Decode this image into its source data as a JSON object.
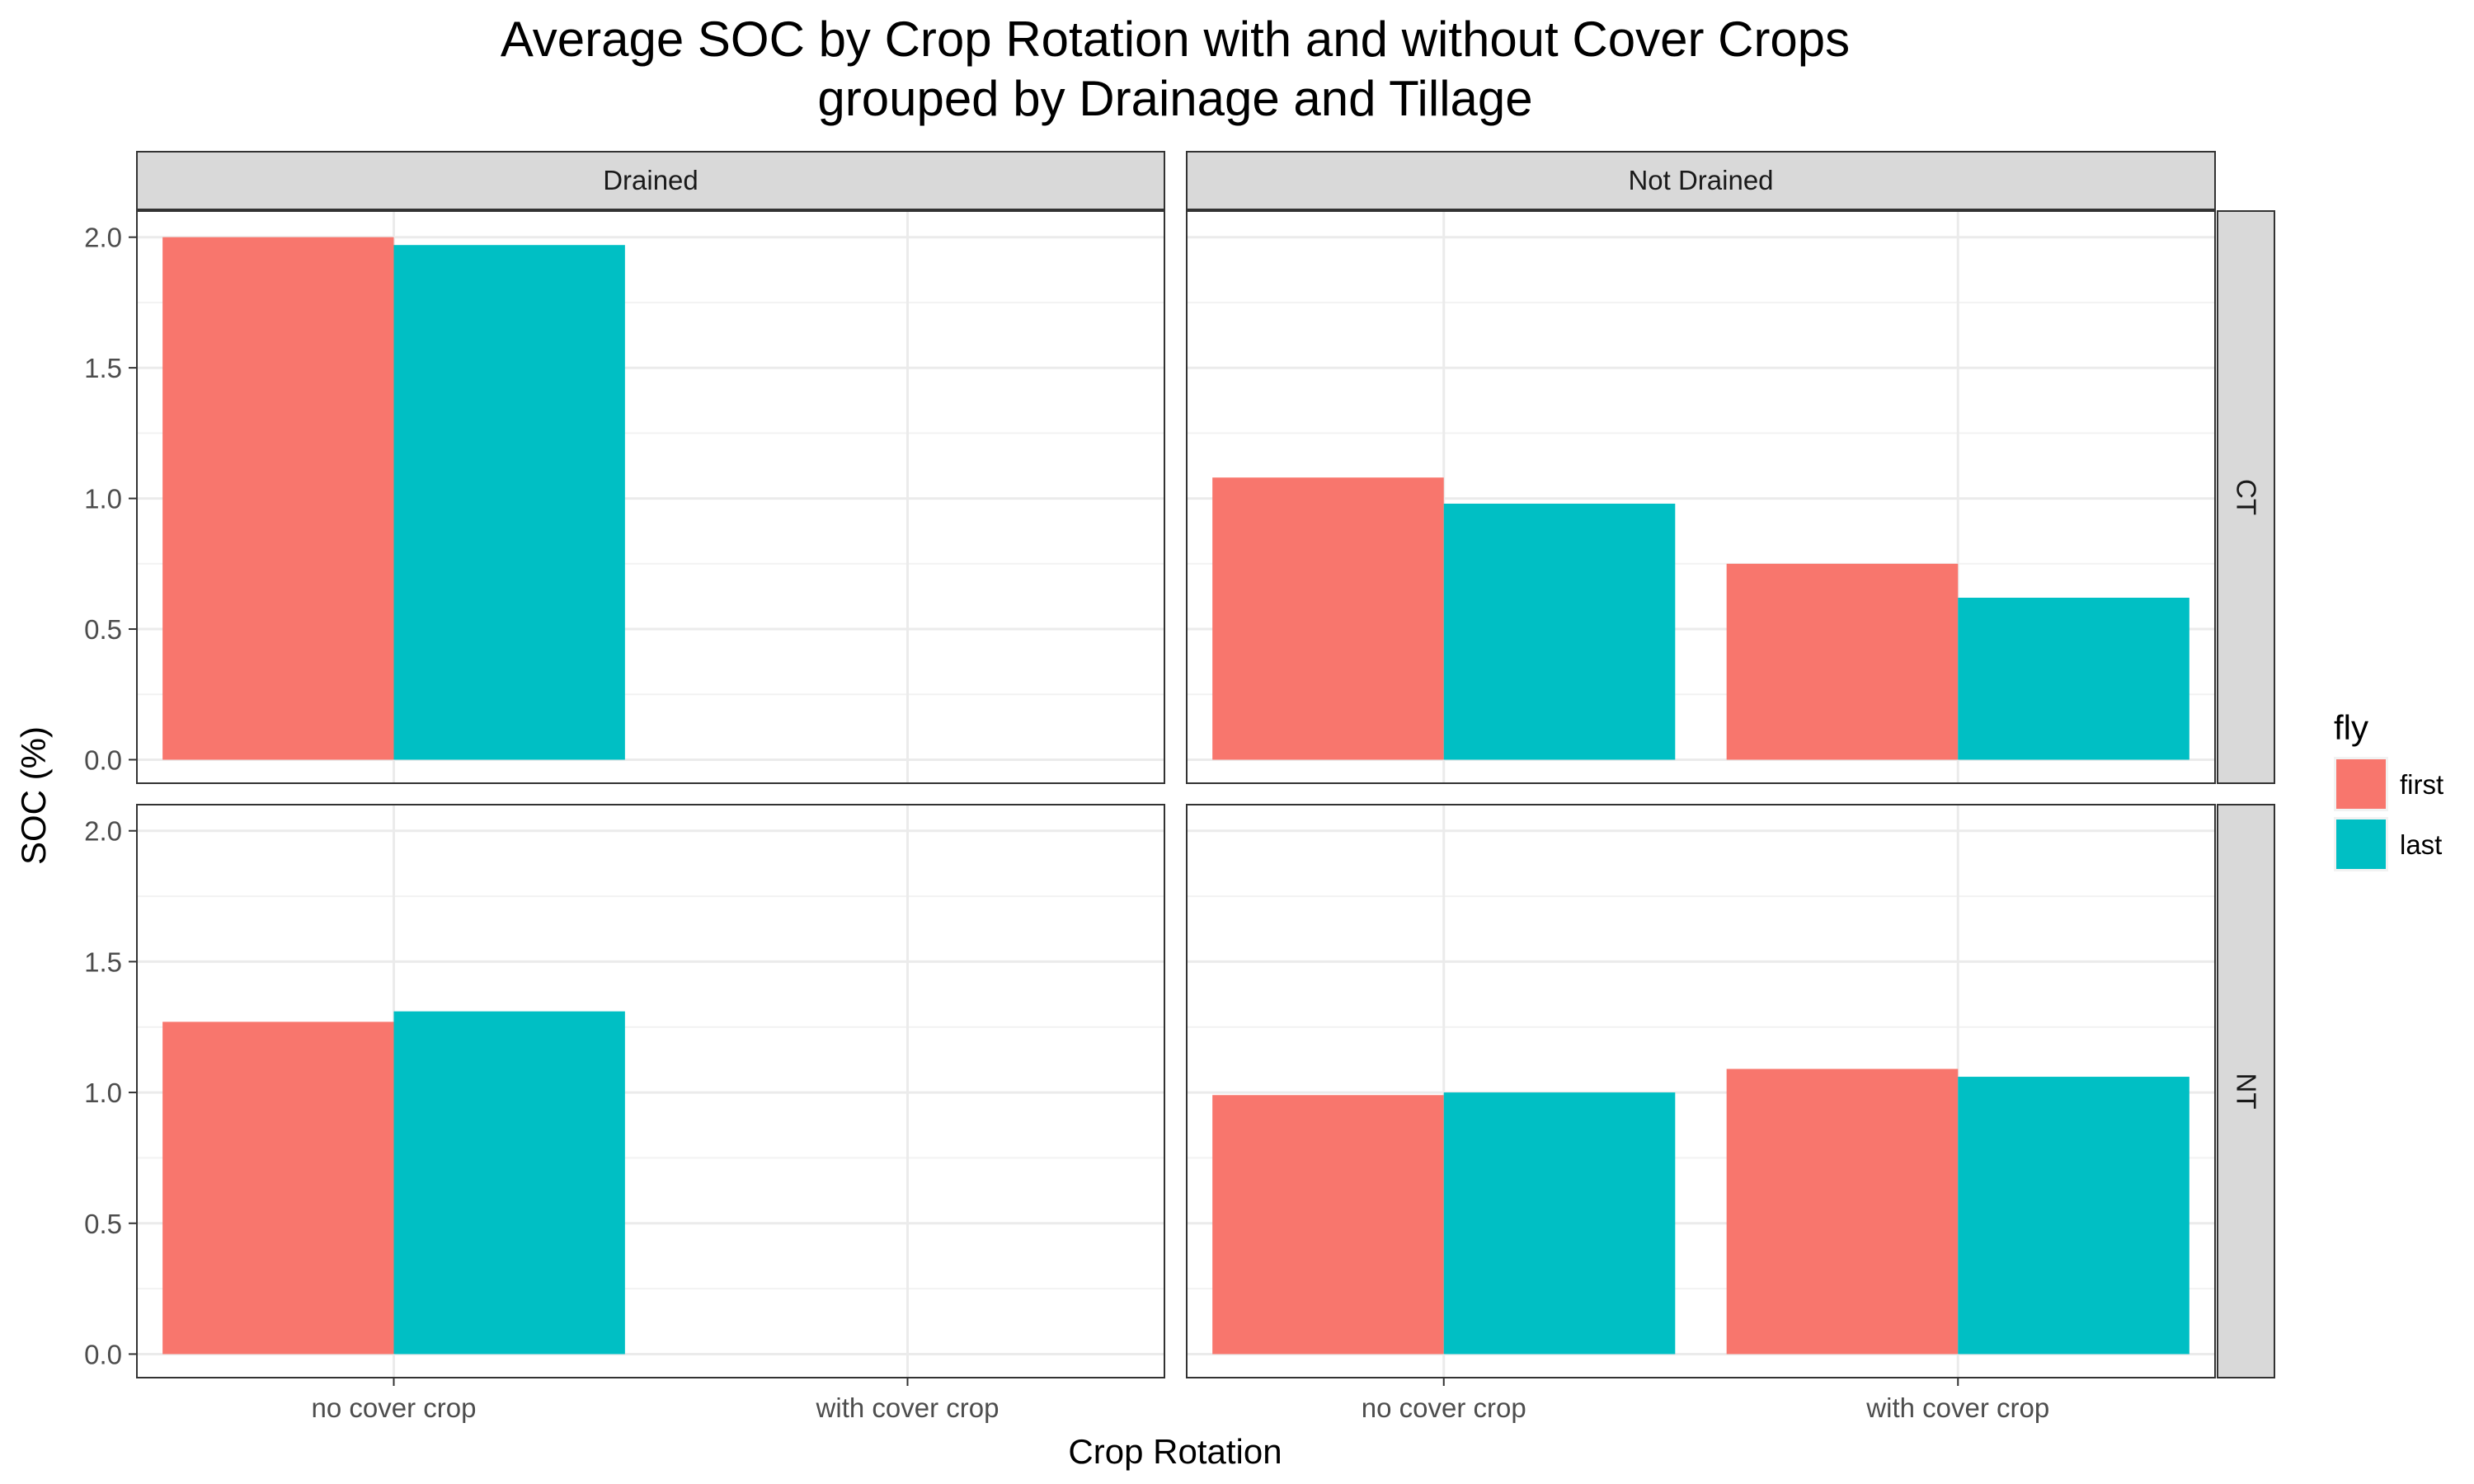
{
  "chart_data": {
    "type": "bar",
    "title": [
      "Average SOC by Crop Rotation with and without Cover Crops",
      "grouped by Drainage and Tillage"
    ],
    "xlabel": "Crop Rotation",
    "ylabel": "SOC (%)",
    "ylim": [
      -0.09,
      2.1
    ],
    "y_ticks": [
      "0.0",
      "0.5",
      "1.0",
      "1.5",
      "2.0"
    ],
    "y_tick_values": [
      0,
      0.5,
      1.0,
      1.5,
      2.0
    ],
    "categories": [
      "no cover crop",
      "with cover crop"
    ],
    "col_facets": [
      "Drained",
      "Not Drained"
    ],
    "row_facets": [
      "CT",
      "NT"
    ],
    "grid": true,
    "legend": {
      "title": "fly",
      "position": "right",
      "entries": [
        {
          "label": "first",
          "color": "#F8766D"
        },
        {
          "label": "last",
          "color": "#00BFC4"
        }
      ]
    },
    "panels": [
      {
        "col": "Drained",
        "row": "CT",
        "series": [
          {
            "name": "first",
            "values": [
              2.0,
              null
            ]
          },
          {
            "name": "last",
            "values": [
              1.97,
              null
            ]
          }
        ]
      },
      {
        "col": "Not Drained",
        "row": "CT",
        "series": [
          {
            "name": "first",
            "values": [
              1.08,
              0.75
            ]
          },
          {
            "name": "last",
            "values": [
              0.98,
              0.62
            ]
          }
        ]
      },
      {
        "col": "Drained",
        "row": "NT",
        "series": [
          {
            "name": "first",
            "values": [
              1.27,
              null
            ]
          },
          {
            "name": "last",
            "values": [
              1.31,
              null
            ]
          }
        ]
      },
      {
        "col": "Not Drained",
        "row": "NT",
        "series": [
          {
            "name": "first",
            "values": [
              0.99,
              1.09
            ]
          },
          {
            "name": "last",
            "values": [
              1.0,
              1.06
            ]
          }
        ]
      }
    ]
  }
}
